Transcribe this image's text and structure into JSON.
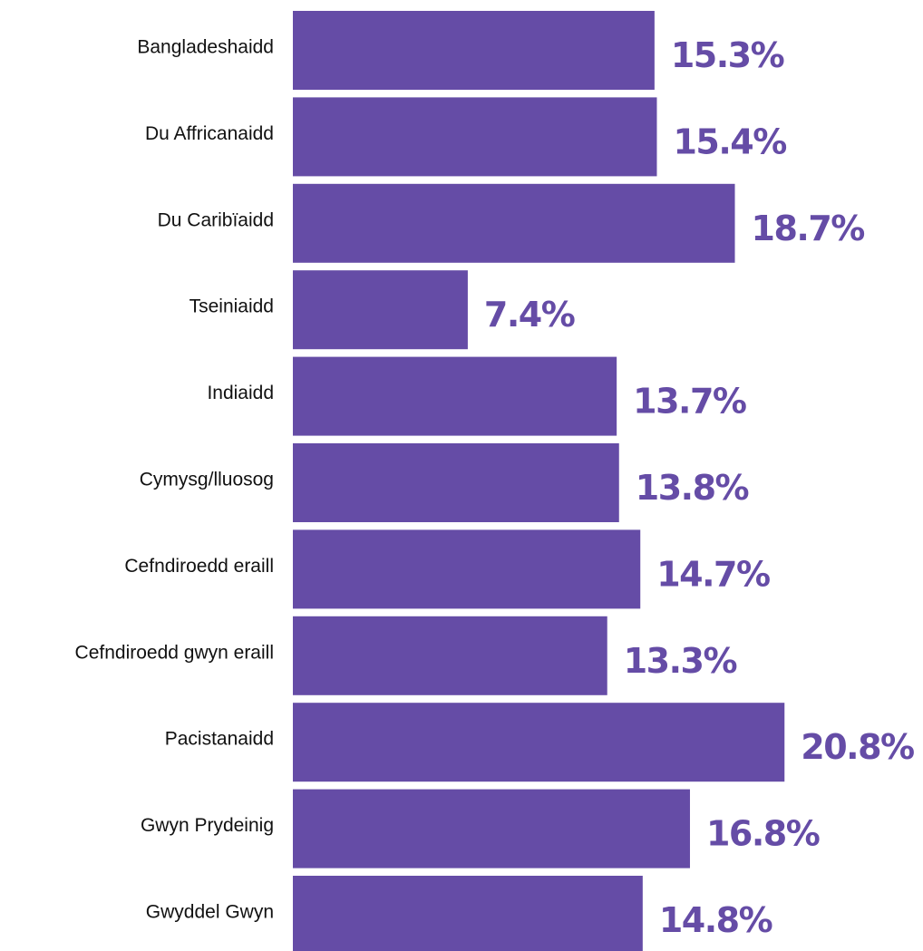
{
  "chart_data": {
    "type": "bar",
    "orientation": "horizontal",
    "categories": [
      "Bangladeshaidd",
      "Du Affricanaidd",
      "Du Caribïaidd",
      "Tseiniaidd",
      "Indiaidd",
      "Cymysg/lluosog",
      "Cefndiroedd eraill",
      "Cefndiroedd gwyn eraill",
      "Pacistanaidd",
      "Gwyn Prydeinig",
      "Gwyddel Gwyn"
    ],
    "values": [
      15.3,
      15.4,
      18.7,
      7.4,
      13.7,
      13.8,
      14.7,
      13.3,
      20.8,
      16.8,
      14.8
    ],
    "value_labels": [
      "15.3%",
      "15.4%",
      "18.7%",
      "7.4%",
      "13.7%",
      "13.8%",
      "14.7%",
      "13.3%",
      "20.8%",
      "16.8%",
      "14.8%"
    ],
    "title": "",
    "xlabel": "",
    "ylabel": "",
    "grid": false,
    "legend": "none",
    "bar_color": "#654ca6",
    "label_color": "#654ca6"
  }
}
